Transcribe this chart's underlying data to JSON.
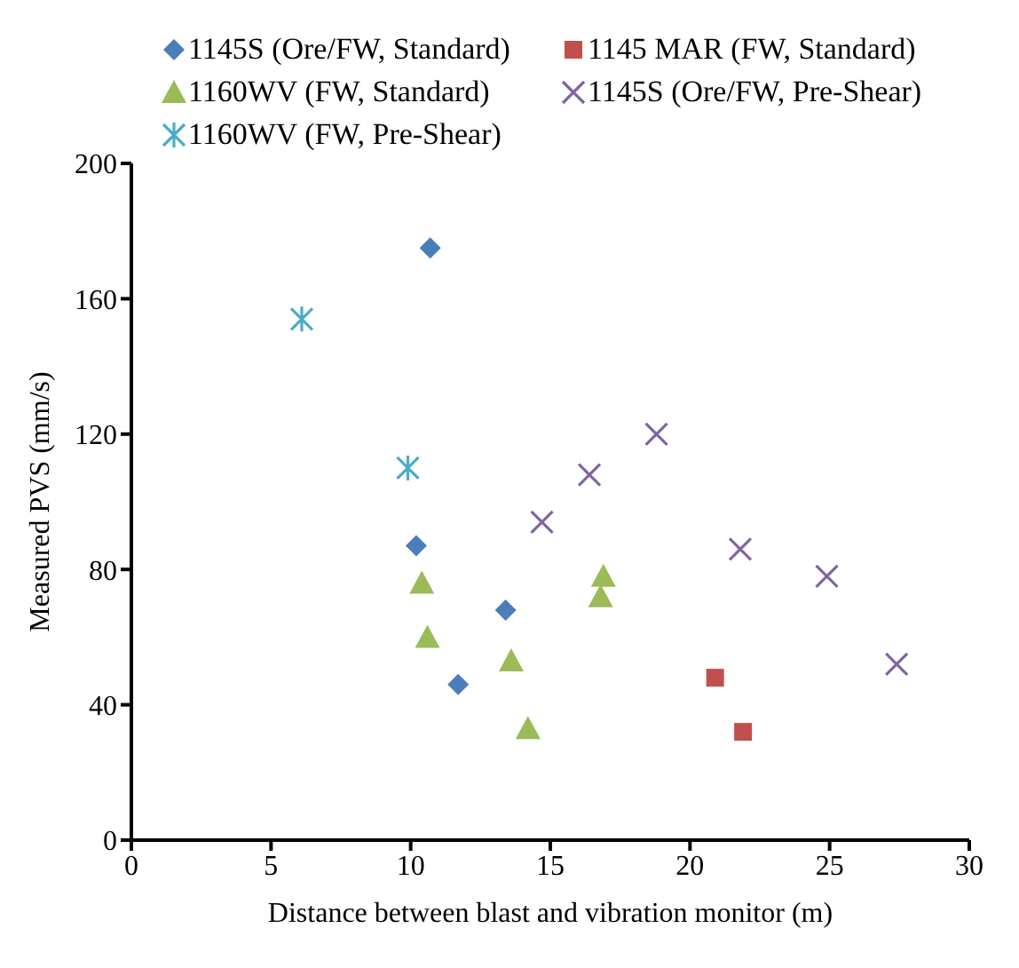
{
  "chart_data": {
    "type": "scatter",
    "xlabel": "Distance between blast and vibration monitor (m)",
    "ylabel": "Measured PVS (mm/s)",
    "xlim": [
      0,
      30
    ],
    "xticks": [
      0,
      5,
      10,
      15,
      20,
      25,
      30
    ],
    "ylim": [
      0,
      200
    ],
    "yticks": [
      0,
      40,
      80,
      120,
      160,
      200
    ],
    "grid": false,
    "legend": "top",
    "series": [
      {
        "name": "1145S (Ore/FW, Standard)",
        "color": "#4a7ebb",
        "marker": "diamond",
        "x": [
          10.7,
          10.2,
          13.4,
          11.7
        ],
        "values": [
          175,
          87,
          68,
          46
        ]
      },
      {
        "name": "1145 MAR (FW, Standard)",
        "color": "#c0504d",
        "marker": "square",
        "x": [
          20.9,
          21.9
        ],
        "values": [
          48,
          32
        ]
      },
      {
        "name": "1160WV (FW, Standard)",
        "color": "#9bbb59",
        "marker": "triangle",
        "x": [
          10.4,
          10.6,
          13.6,
          14.2,
          16.9,
          16.8
        ],
        "values": [
          76,
          60,
          53,
          33,
          78,
          72
        ]
      },
      {
        "name": "1145S (Ore/FW, Pre-Shear)",
        "color": "#8064a2",
        "marker": "cross",
        "x": [
          14.7,
          16.4,
          18.8,
          21.8,
          24.9,
          27.4
        ],
        "values": [
          94,
          108,
          120,
          86,
          78,
          52
        ]
      },
      {
        "name": "1160WV (FW, Pre-Shear)",
        "color": "#4bacc6",
        "x": [
          6.1,
          9.9
        ],
        "values": [
          154,
          110
        ]
      }
    ]
  }
}
